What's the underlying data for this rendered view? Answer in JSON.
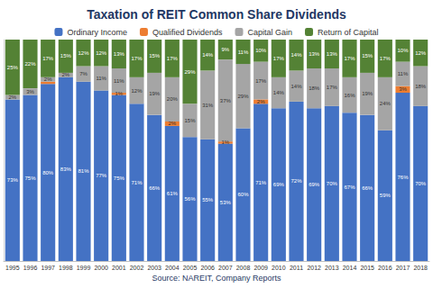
{
  "chart_data": {
    "type": "bar",
    "title": "Taxation of REIT Common Share Dividends",
    "subtitle": "Source: NAREIT, Company Reports",
    "categories": [
      "1995",
      "1996",
      "1997",
      "1998",
      "1999",
      "2000",
      "2001",
      "2002",
      "2003",
      "2004",
      "2005",
      "2006",
      "2007",
      "2008",
      "2009",
      "2010",
      "2011",
      "2012",
      "2013",
      "2014",
      "2015",
      "2016",
      "2017",
      "2018"
    ],
    "series": [
      {
        "name": "Ordinary Income",
        "color": "#4472c4",
        "values": [
          73,
          75,
          80,
          83,
          81,
          77,
          75,
          71,
          66,
          61,
          56,
          55,
          53,
          60,
          71,
          69,
          72,
          69,
          70,
          67,
          66,
          59,
          76,
          70
        ],
        "value_labels": [
          "73%",
          "75%",
          "80%",
          "83%",
          "81%",
          "77%",
          "75%",
          "71%",
          "66%",
          "61%",
          "56%",
          "55%",
          "53%",
          "60%",
          "71%",
          "69%",
          "72%",
          "69%",
          "70%",
          "67%",
          "66%",
          "59%",
          "76%",
          "70%"
        ]
      },
      {
        "name": "Qualified Dividends",
        "color": "#ed7d31",
        "values": [
          null,
          null,
          1,
          null,
          null,
          null,
          1,
          null,
          null,
          2,
          null,
          null,
          1,
          null,
          2,
          null,
          null,
          null,
          null,
          null,
          null,
          null,
          3,
          null
        ],
        "value_labels": [
          null,
          null,
          "1%",
          null,
          null,
          null,
          "1%",
          null,
          null,
          "2%",
          null,
          null,
          "1%",
          null,
          "2%",
          null,
          null,
          null,
          null,
          null,
          null,
          null,
          "3%",
          null
        ]
      },
      {
        "name": "Capital Gain",
        "color": "#a5a5a5",
        "values": [
          2,
          3,
          2,
          2,
          7,
          11,
          11,
          12,
          19,
          20,
          15,
          31,
          37,
          29,
          17,
          14,
          14,
          18,
          17,
          16,
          19,
          24,
          11,
          18
        ],
        "value_labels": [
          "2%",
          "3%",
          "2%",
          "2%",
          "7%",
          "11%",
          "11%",
          "12%",
          "19%",
          "20%",
          "15%",
          "31%",
          "37%",
          "29%",
          "17%",
          "14%",
          "14%",
          "18%",
          "17%",
          "16%",
          "19%",
          "24%",
          "11%",
          "18%"
        ]
      },
      {
        "name": "Return of Capital",
        "color": "#548235",
        "values": [
          25,
          22,
          17,
          15,
          12,
          12,
          13,
          17,
          15,
          17,
          29,
          14,
          9,
          11,
          10,
          17,
          14,
          13,
          13,
          17,
          15,
          17,
          10,
          12
        ],
        "value_labels": [
          "25%",
          "22%",
          "17%",
          "15%",
          "12%",
          "12%",
          "13%",
          "17%",
          "15%",
          "17%",
          "29%",
          "14%",
          "9%",
          "11%",
          "10%",
          "17%",
          "14%",
          "13%",
          "13%",
          "17%",
          "15%",
          "17%",
          "10%",
          "12%"
        ]
      }
    ],
    "ylim": [
      0,
      100
    ],
    "stacked": true,
    "data_labels": true,
    "tick_labels": "x",
    "grid": false,
    "legend": "top"
  }
}
